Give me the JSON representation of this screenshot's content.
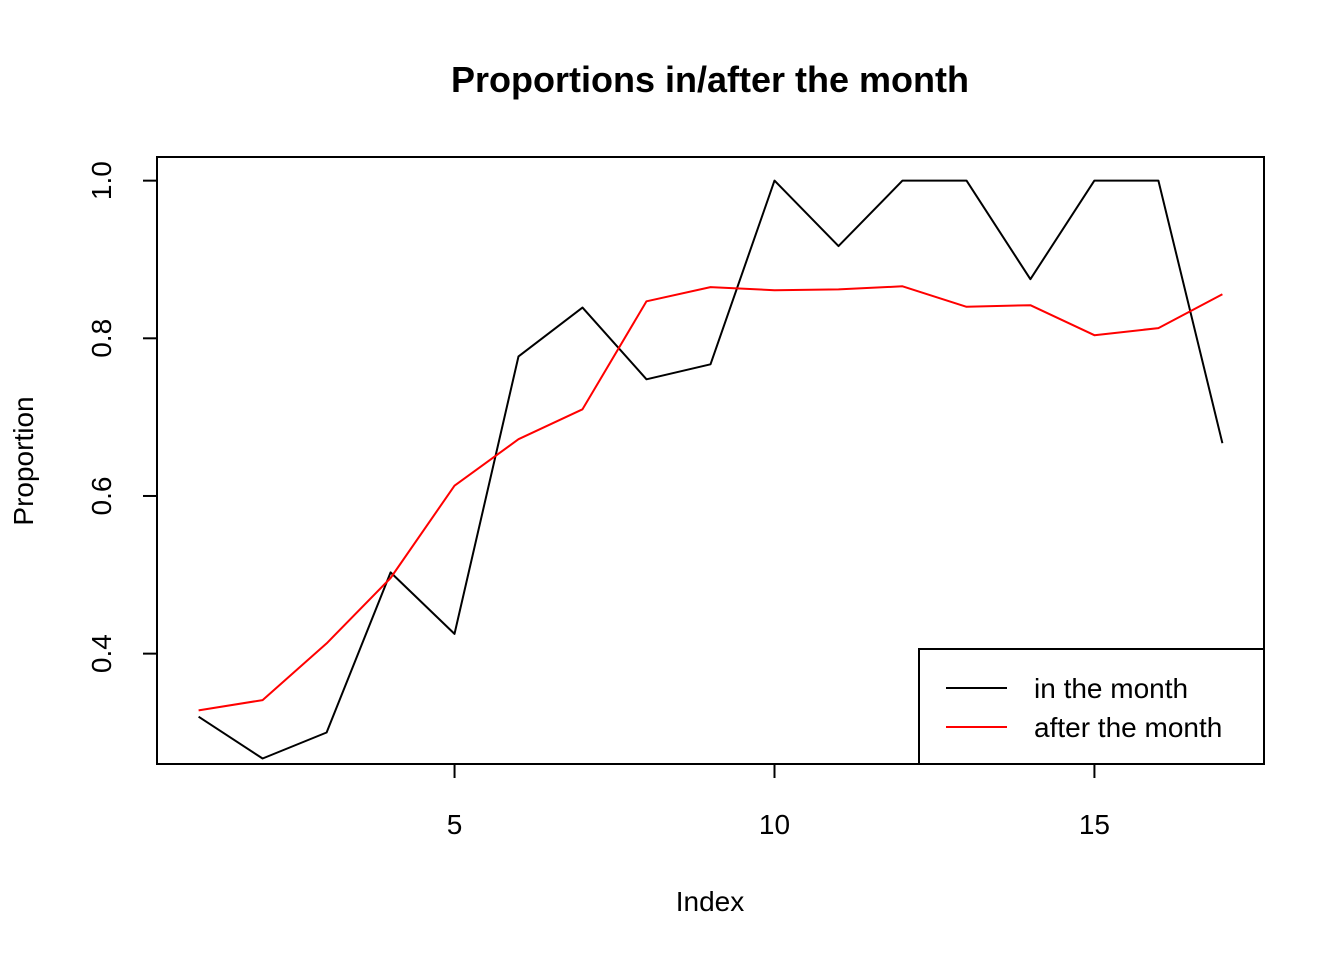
{
  "chart_data": {
    "type": "line",
    "title": "Proportions in/after the month",
    "xlabel": "Index",
    "ylabel": "Proportion",
    "xlim": [
      0.35,
      17.65
    ],
    "ylim": [
      0.26,
      1.03
    ],
    "xticks": [
      5,
      10,
      15
    ],
    "yticks": [
      0.4,
      0.6,
      0.8,
      1.0
    ],
    "ytick_labels": [
      "0.4",
      "0.6",
      "0.8",
      "1.0"
    ],
    "x": [
      1,
      2,
      3,
      4,
      5,
      6,
      7,
      8,
      9,
      10,
      11,
      12,
      13,
      14,
      15,
      16,
      17
    ],
    "series": [
      {
        "name": "in the month",
        "color": "#000000",
        "values": [
          0.32,
          0.267,
          0.3,
          0.503,
          0.425,
          0.777,
          0.839,
          0.748,
          0.767,
          1.0,
          0.917,
          1.0,
          1.0,
          0.875,
          1.0,
          1.0,
          0.667
        ]
      },
      {
        "name": "after the month",
        "color": "#ff0000",
        "values": [
          0.328,
          0.341,
          0.413,
          0.496,
          0.613,
          0.672,
          0.71,
          0.847,
          0.865,
          0.861,
          0.862,
          0.866,
          0.84,
          0.842,
          0.804,
          0.813,
          0.856
        ]
      }
    ],
    "legend_position": "bottom-right",
    "grid": false
  }
}
